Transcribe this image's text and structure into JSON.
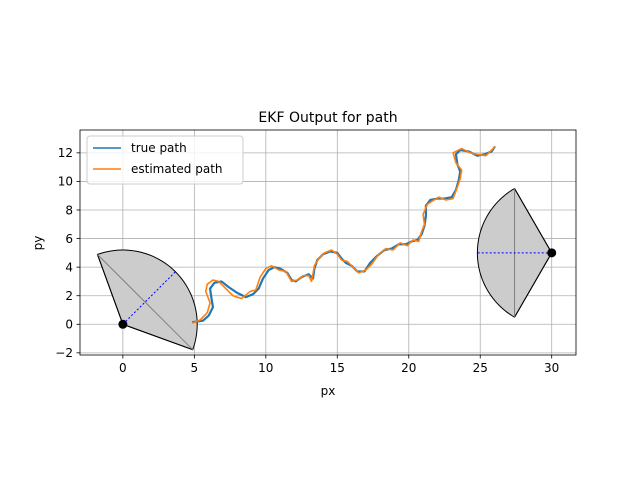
{
  "chart_data": {
    "type": "line",
    "title": "EKF Output for path",
    "xlabel": "px",
    "ylabel": "py",
    "xlim": [
      -3.0,
      31.7
    ],
    "ylim": [
      -2.15,
      13.6
    ],
    "xticks": [
      0,
      5,
      10,
      15,
      20,
      25,
      30
    ],
    "yticks": [
      -2,
      0,
      2,
      4,
      6,
      8,
      10,
      12
    ],
    "xtick_labels": [
      "0",
      "5",
      "10",
      "15",
      "20",
      "25",
      "30"
    ],
    "ytick_labels": [
      "−2",
      "0",
      "2",
      "4",
      "6",
      "8",
      "10",
      "12"
    ],
    "grid": true,
    "legend_position": "upper-left",
    "series": [
      {
        "name": "true path",
        "color": "#1f77b4",
        "x": [
          4.9,
          5.6,
          6.0,
          6.3,
          6.2,
          6.1,
          6.4,
          6.9,
          7.4,
          8.0,
          8.6,
          9.1,
          9.5,
          9.8,
          10.2,
          10.6,
          11.0,
          11.5,
          11.8,
          12.1,
          12.5,
          13.0,
          13.3,
          13.4,
          13.6,
          14.0,
          14.5,
          15.0,
          15.3,
          15.6,
          16.0,
          16.4,
          16.9,
          17.3,
          17.8,
          18.3,
          18.8,
          19.3,
          19.8,
          20.2,
          20.6,
          20.9,
          21.1,
          21.2,
          21.2,
          21.5,
          22.0,
          22.5,
          23.0,
          23.3,
          23.5,
          23.6,
          23.4,
          23.3,
          23.6,
          24.2,
          24.8,
          25.3,
          25.8,
          26.0
        ],
        "y": [
          0.15,
          0.25,
          0.6,
          1.2,
          1.8,
          2.5,
          2.9,
          3.0,
          2.6,
          2.2,
          1.9,
          2.1,
          2.5,
          3.2,
          3.8,
          4.0,
          3.9,
          3.6,
          3.1,
          3.0,
          3.3,
          3.5,
          3.2,
          3.9,
          4.5,
          4.9,
          5.1,
          5.0,
          4.6,
          4.3,
          4.1,
          3.7,
          3.7,
          4.3,
          4.8,
          5.2,
          5.3,
          5.6,
          5.6,
          5.8,
          5.9,
          6.3,
          6.9,
          7.6,
          8.3,
          8.7,
          8.8,
          8.8,
          8.9,
          9.4,
          10.1,
          10.7,
          11.2,
          11.9,
          12.2,
          12.1,
          11.8,
          11.9,
          12.1,
          12.4
        ]
      },
      {
        "name": "estimated path",
        "color": "#ff7f0e",
        "x": [
          4.9,
          5.4,
          5.9,
          6.1,
          5.8,
          5.9,
          6.3,
          6.7,
          7.2,
          7.7,
          8.3,
          8.9,
          9.3,
          9.6,
          10.0,
          10.4,
          10.9,
          11.4,
          11.8,
          12.2,
          12.6,
          13.0,
          13.2,
          13.4,
          13.7,
          14.1,
          14.6,
          15.0,
          15.3,
          15.7,
          16.1,
          16.5,
          17.0,
          17.4,
          17.9,
          18.4,
          18.9,
          19.4,
          19.9,
          20.3,
          20.7,
          20.9,
          21.1,
          21.0,
          21.3,
          21.6,
          22.1,
          22.6,
          23.1,
          23.4,
          23.6,
          23.7,
          23.3,
          23.1,
          23.7,
          24.3,
          24.8,
          25.4,
          25.8,
          26.0
        ],
        "y": [
          0.1,
          0.3,
          0.8,
          1.5,
          2.3,
          2.8,
          3.1,
          3.0,
          2.5,
          2.0,
          1.8,
          2.3,
          2.4,
          3.3,
          3.9,
          4.1,
          3.8,
          3.7,
          3.0,
          3.1,
          3.4,
          3.4,
          3.0,
          4.1,
          4.6,
          5.0,
          5.2,
          4.9,
          4.5,
          4.4,
          4.0,
          3.6,
          3.8,
          4.2,
          4.9,
          5.3,
          5.2,
          5.7,
          5.5,
          5.9,
          5.8,
          6.5,
          7.0,
          7.7,
          8.4,
          8.6,
          8.9,
          8.7,
          8.8,
          9.6,
          10.2,
          10.8,
          11.3,
          12.0,
          12.3,
          12.0,
          11.9,
          11.8,
          12.2,
          12.4
        ]
      }
    ],
    "sensors": [
      {
        "x": 0,
        "y": 0,
        "arc_start_deg": -20,
        "arc_end_deg": 110,
        "range": 5.2
      },
      {
        "x": 30,
        "y": 5,
        "arc_start_deg": 120,
        "arc_end_deg": 240,
        "range": 5.2
      }
    ],
    "colors": {
      "wedge_fill": "#cccccc",
      "grid": "#b0b0b0",
      "sensor_midline": "#808080",
      "sensor_chord": "#0000ff"
    }
  }
}
